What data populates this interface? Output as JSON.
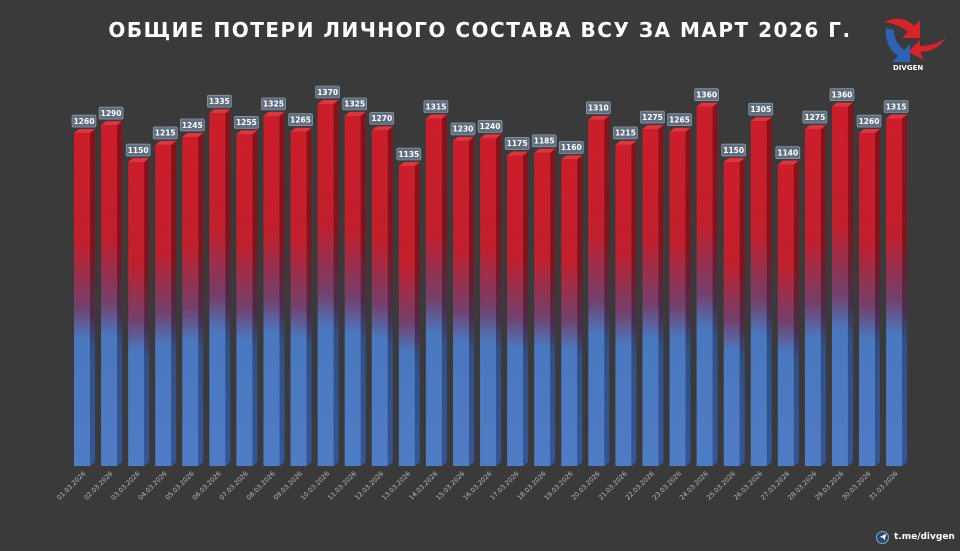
{
  "header": {
    "title": "ОБЩИЕ ПОТЕРИ ЛИЧНОГО СОСТАВА ВСУ ЗА МАРТ 2026 Г."
  },
  "logo": {
    "text": "DIVGEN"
  },
  "footer": {
    "channel": "t.me/divgen",
    "icon": "telegram-icon"
  },
  "colors": {
    "background": "#3a3a3a",
    "bar_top": "#c81f2b",
    "bar_bottom": "#4f7cc4",
    "label_bg": "#5f6f80"
  },
  "chart_data": {
    "type": "bar",
    "title": "ОБЩИЕ ПОТЕРИ ЛИЧНОГО СОСТАВА ВСУ ЗА МАРТ 2026 Г.",
    "xlabel": "",
    "ylabel": "",
    "grid": false,
    "legend": "none",
    "categories": [
      "01.03.2026",
      "02.03.2026",
      "03.03.2026",
      "04.03.2026",
      "05.03.2026",
      "06.03.2026",
      "07.03.2026",
      "08.03.2026",
      "09.03.2026",
      "10.03.2026",
      "11.03.2026",
      "12.03.2026",
      "13.03.2026",
      "14.03.2026",
      "15.03.2026",
      "16.03.2026",
      "17.03.2026",
      "18.03.2026",
      "19.03.2026",
      "20.03.2026",
      "21.03.2026",
      "22.03.2026",
      "23.03.2026",
      "24.03.2026",
      "25.03.2026",
      "26.03.2026",
      "27.03.2026",
      "28.03.2026",
      "29.03.2026",
      "30.03.2026",
      "31.03.2026"
    ],
    "values": [
      1260,
      1290,
      1150,
      1215,
      1245,
      1335,
      1255,
      1325,
      1265,
      1370,
      1325,
      1270,
      1135,
      1315,
      1230,
      1240,
      1175,
      1185,
      1160,
      1310,
      1215,
      1275,
      1265,
      1360,
      1150,
      1305,
      1140,
      1275,
      1360,
      1260,
      1315
    ],
    "ylim": [
      0,
      1400
    ]
  }
}
